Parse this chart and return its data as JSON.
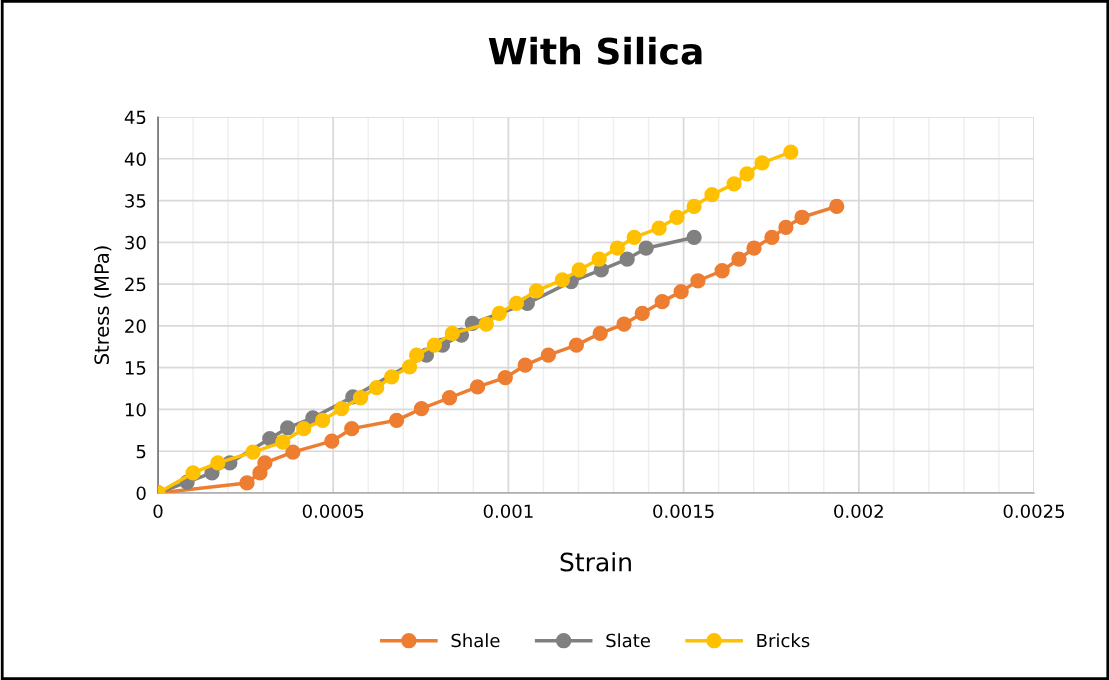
{
  "chart_data": {
    "type": "line",
    "title": "With Silica",
    "xlabel": "Strain",
    "ylabel": "Stress (MPa)",
    "xlim": [
      0,
      0.0025
    ],
    "xticks": [
      0,
      0.0005,
      0.001,
      0.0015,
      0.002,
      0.0025
    ],
    "ylim": [
      0,
      45
    ],
    "yticks": [
      0,
      5,
      10,
      15,
      20,
      25,
      30,
      35,
      40,
      45
    ],
    "grid": true,
    "legend": "bottom",
    "marker": "circle",
    "series": [
      {
        "name": "Shale",
        "color": "#ed7d31",
        "x": [
          0,
          0.000254,
          0.000291,
          0.000305,
          0.000385,
          0.000496,
          0.000553,
          0.000681,
          0.000752,
          0.000832,
          0.000912,
          0.000991,
          0.001048,
          0.001114,
          0.001194,
          0.001262,
          0.00133,
          0.001382,
          0.001439,
          0.001493,
          0.001541,
          0.00161,
          0.001658,
          0.001701,
          0.001752,
          0.001792,
          0.001838,
          0.001937
        ],
        "values": [
          0,
          1.2,
          2.4,
          3.6,
          4.9,
          6.2,
          7.7,
          8.7,
          10.1,
          11.4,
          12.7,
          13.8,
          15.3,
          16.5,
          17.7,
          19.1,
          20.2,
          21.5,
          22.9,
          24.1,
          25.4,
          26.6,
          28.0,
          29.3,
          30.6,
          31.8,
          33.0,
          34.3
        ]
      },
      {
        "name": "Slate",
        "color": "#808080",
        "x": [
          0,
          8.3e-05,
          0.000154,
          0.000205,
          0.000319,
          0.00037,
          0.000442,
          0.000556,
          0.000766,
          0.000812,
          0.000866,
          0.000897,
          0.001054,
          0.001179,
          0.001265,
          0.001339,
          0.001393,
          0.00153
        ],
        "values": [
          0,
          1.3,
          2.4,
          3.6,
          6.5,
          7.8,
          9.0,
          11.5,
          16.5,
          17.7,
          18.9,
          20.3,
          22.7,
          25.3,
          26.7,
          28.0,
          29.3,
          30.6
        ]
      },
      {
        "name": "Bricks",
        "color": "#ffc000",
        "x": [
          0,
          0.0001,
          0.000171,
          0.000271,
          0.000356,
          0.000416,
          0.00047,
          0.000524,
          0.000578,
          0.000624,
          0.000667,
          0.000718,
          0.000738,
          0.000789,
          0.00084,
          0.000937,
          0.000974,
          0.001023,
          0.00108,
          0.001154,
          0.001202,
          0.001259,
          0.001311,
          0.001359,
          0.00143,
          0.001481,
          0.00153,
          0.001581,
          0.001644,
          0.001681,
          0.001724,
          0.001806
        ],
        "values": [
          0,
          2.4,
          3.6,
          4.9,
          6.1,
          7.7,
          8.7,
          10.1,
          11.4,
          12.6,
          13.9,
          15.1,
          16.5,
          17.7,
          19.1,
          20.2,
          21.5,
          22.7,
          24.2,
          25.5,
          26.7,
          28.0,
          29.3,
          30.6,
          31.7,
          33.0,
          34.3,
          35.7,
          37.0,
          38.2,
          39.5,
          40.8
        ]
      }
    ]
  }
}
